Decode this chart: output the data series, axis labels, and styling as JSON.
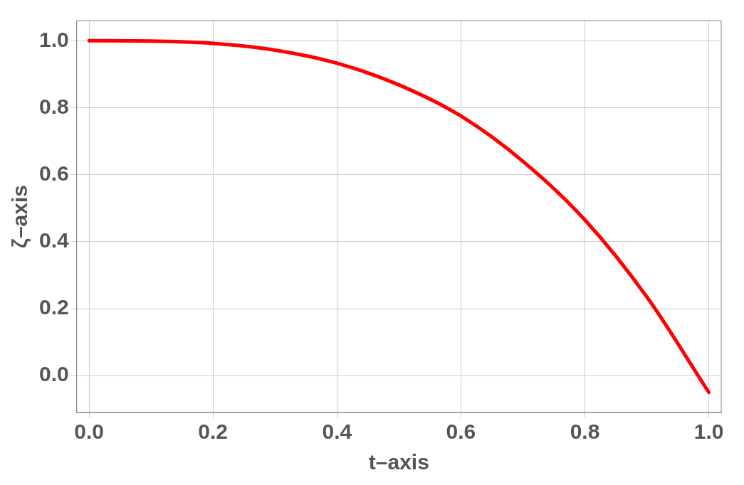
{
  "chart_data": {
    "type": "line",
    "xlabel": "t–axis",
    "ylabel": "ζ–axis",
    "x": [
      0,
      0.1,
      0.2,
      0.3,
      0.4,
      0.5,
      0.6,
      0.7,
      0.8,
      0.9,
      1.0
    ],
    "series": [
      {
        "color": "#ff0000",
        "values": [
          1.0,
          0.999,
          0.992,
          0.972,
          0.933,
          0.868,
          0.775,
          0.64,
          0.465,
          0.235,
          -0.05
        ]
      }
    ],
    "xlim": [
      -0.02,
      1.02
    ],
    "ylim": [
      -0.11,
      1.06
    ],
    "xticks": [
      {
        "value": 0,
        "label": "0.0"
      },
      {
        "value": 0.2,
        "label": "0.2"
      },
      {
        "value": 0.4,
        "label": "0.4"
      },
      {
        "value": 0.6,
        "label": "0.6"
      },
      {
        "value": 0.8,
        "label": "0.8"
      },
      {
        "value": 1,
        "label": "1.0"
      }
    ],
    "yticks": [
      {
        "value": 0,
        "label": "0.0"
      },
      {
        "value": 0.2,
        "label": "0.2"
      },
      {
        "value": 0.4,
        "label": "0.4"
      },
      {
        "value": 0.6,
        "label": "0.6"
      },
      {
        "value": 0.8,
        "label": "0.8"
      },
      {
        "value": 1,
        "label": "1.0"
      }
    ],
    "grid": true,
    "legend": false,
    "marker": "none",
    "line_style": "solid"
  }
}
